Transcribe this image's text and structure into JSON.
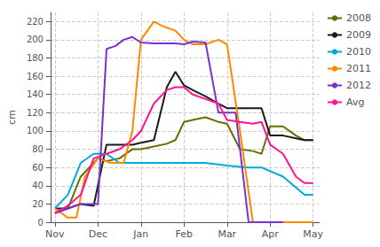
{
  "chart_data": {
    "type": "line",
    "ylabel": "cm",
    "xlim": [
      -0.1,
      6.15
    ],
    "xticks": [
      {
        "value": 0,
        "label": "Nov"
      },
      {
        "value": 1,
        "label": "Dec"
      },
      {
        "value": 2,
        "label": "Jan"
      },
      {
        "value": 3,
        "label": "Feb"
      },
      {
        "value": 4,
        "label": "Mar"
      },
      {
        "value": 5,
        "label": "Apr"
      },
      {
        "value": 6,
        "label": "May"
      }
    ],
    "ylim": [
      0,
      230
    ],
    "yticks": [
      0,
      20,
      40,
      60,
      80,
      100,
      120,
      140,
      160,
      180,
      200,
      220
    ],
    "grid": true,
    "legend": "right",
    "series": [
      {
        "name": "2008",
        "color": "#6b6b00",
        "x": [
          0,
          0.3,
          0.6,
          0.9,
          1.0,
          1.2,
          1.5,
          1.8,
          2.0,
          2.3,
          2.6,
          2.8,
          3.0,
          3.2,
          3.5,
          3.8,
          4.0,
          4.3,
          4.6,
          4.8,
          5.0,
          5.3,
          5.6,
          5.8,
          6.0
        ],
        "values": [
          10,
          15,
          50,
          65,
          70,
          67,
          70,
          80,
          80,
          83,
          86,
          90,
          110,
          112,
          115,
          110,
          108,
          80,
          78,
          75,
          105,
          105,
          95,
          90,
          90
        ]
      },
      {
        "name": "2009",
        "color": "#1a1a1a",
        "x": [
          0,
          0.3,
          0.6,
          0.9,
          1.2,
          1.5,
          1.8,
          2.0,
          2.3,
          2.6,
          2.8,
          3.0,
          3.2,
          3.5,
          3.8,
          4.0,
          4.3,
          4.6,
          4.8,
          5.0,
          5.3,
          5.6,
          5.8,
          6.0
        ],
        "values": [
          15,
          15,
          20,
          18,
          85,
          85,
          85,
          87,
          90,
          148,
          165,
          150,
          145,
          138,
          130,
          125,
          125,
          125,
          125,
          95,
          95,
          92,
          90,
          90
        ]
      },
      {
        "name": "2010",
        "color": "#00aadd",
        "x": [
          0,
          0.3,
          0.6,
          0.9,
          1.2,
          1.5,
          1.8,
          2.0,
          2.5,
          3.0,
          3.5,
          4.0,
          4.5,
          4.8,
          5.3,
          5.8,
          6.0
        ],
        "values": [
          15,
          30,
          65,
          75,
          75,
          65,
          65,
          65,
          65,
          65,
          65,
          62,
          60,
          60,
          50,
          30,
          30
        ]
      },
      {
        "name": "2011",
        "color": "#ff8800",
        "x": [
          0,
          0.3,
          0.5,
          0.7,
          1.0,
          1.3,
          1.6,
          1.8,
          2.0,
          2.3,
          2.5,
          2.8,
          3.0,
          3.2,
          3.5,
          3.8,
          4.0,
          4.3,
          4.6,
          4.8,
          5.0,
          5.3,
          5.6,
          5.8,
          6.0
        ],
        "values": [
          15,
          5,
          5,
          50,
          70,
          65,
          65,
          100,
          200,
          220,
          215,
          210,
          200,
          195,
          195,
          200,
          195,
          100,
          0,
          0,
          0,
          0,
          0,
          0,
          0
        ]
      },
      {
        "name": "2012",
        "color": "#7733cc",
        "x": [
          0,
          0.3,
          0.6,
          1.0,
          1.2,
          1.4,
          1.6,
          1.8,
          2.0,
          2.3,
          2.6,
          2.8,
          3.0,
          3.2,
          3.5,
          3.8,
          4.0,
          4.2,
          4.5,
          4.8,
          5.0,
          5.3
        ],
        "values": [
          10,
          15,
          20,
          20,
          190,
          193,
          200,
          203,
          197,
          196,
          196,
          196,
          195,
          198,
          197,
          120,
          120,
          120,
          0,
          0,
          0,
          0
        ]
      },
      {
        "name": "Avg",
        "color": "#ff1493",
        "x": [
          0,
          0.3,
          0.6,
          0.9,
          1.2,
          1.5,
          1.8,
          2.0,
          2.3,
          2.6,
          2.8,
          3.0,
          3.2,
          3.5,
          3.8,
          4.0,
          4.3,
          4.6,
          4.8,
          5.0,
          5.3,
          5.6,
          5.8,
          6.0
        ],
        "values": [
          10,
          18,
          30,
          70,
          75,
          80,
          90,
          100,
          130,
          145,
          148,
          148,
          140,
          135,
          130,
          112,
          110,
          108,
          110,
          85,
          75,
          50,
          43,
          43
        ]
      }
    ]
  }
}
